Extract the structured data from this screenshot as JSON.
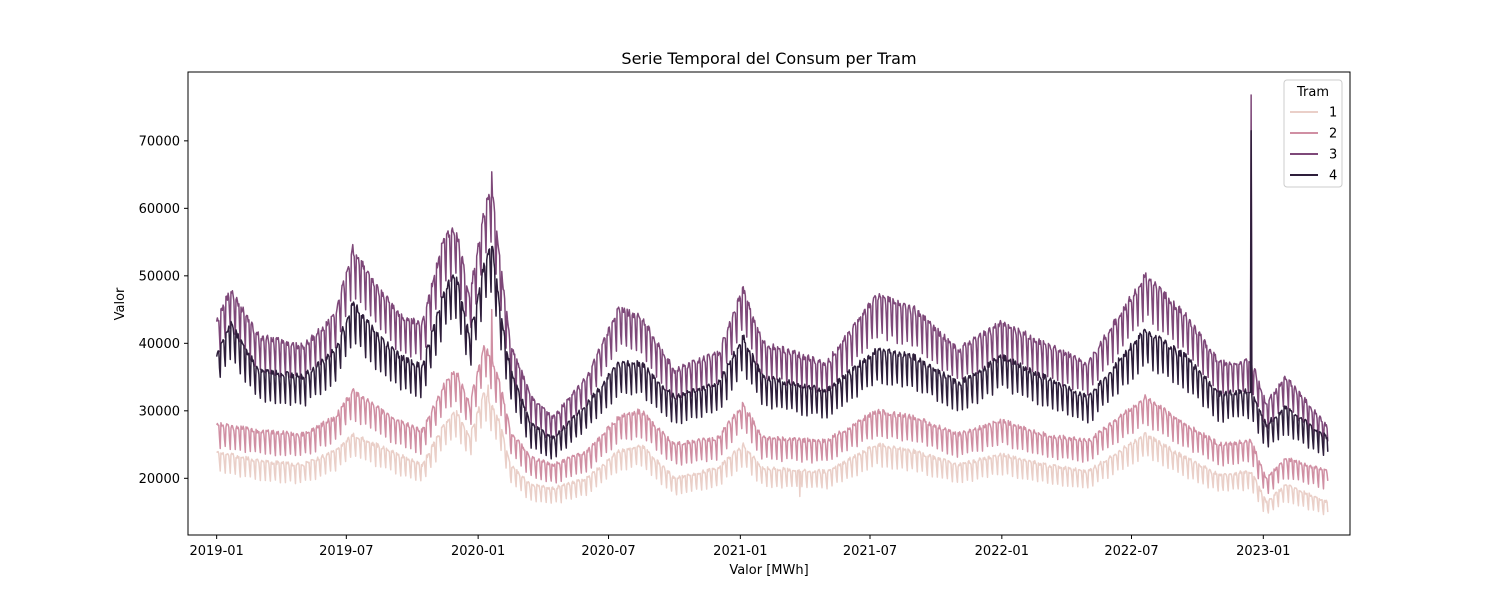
{
  "chart_data": {
    "type": "line",
    "title": "Serie Temporal del Consum per Tram",
    "xlabel": "Valor [MWh]",
    "ylabel": "Valor",
    "x_axis_type": "date",
    "x_range": [
      "2018-11-22",
      "2023-05-02"
    ],
    "ylim": [
      11600,
      80200
    ],
    "x_ticks": [
      "2019-01",
      "2019-07",
      "2020-01",
      "2020-07",
      "2021-01",
      "2021-07",
      "2022-01",
      "2022-07",
      "2023-01"
    ],
    "y_ticks": [
      20000,
      30000,
      40000,
      50000,
      60000,
      70000
    ],
    "grid": false,
    "legend": {
      "title": "Tram",
      "placement": "top-right"
    },
    "series": [
      {
        "name": "1",
        "color": "#eacfc8",
        "baseline_anchors": [
          [
            "2019-01-01",
            24000
          ],
          [
            "2019-03-01",
            22500
          ],
          [
            "2019-05-01",
            22000
          ],
          [
            "2019-06-15",
            24000
          ],
          [
            "2019-07-10",
            26500
          ],
          [
            "2019-09-01",
            24000
          ],
          [
            "2019-10-15",
            22000
          ],
          [
            "2019-11-15",
            28000
          ],
          [
            "2019-12-01",
            30000
          ],
          [
            "2019-12-20",
            26000
          ],
          [
            "2020-01-10",
            33000
          ],
          [
            "2020-02-01",
            28000
          ],
          [
            "2020-02-15",
            22000
          ],
          [
            "2020-03-15",
            19000
          ],
          [
            "2020-04-15",
            18500
          ],
          [
            "2020-06-01",
            20000
          ],
          [
            "2020-07-15",
            24000
          ],
          [
            "2020-08-15",
            25000
          ],
          [
            "2020-10-01",
            20000
          ],
          [
            "2020-12-01",
            21500
          ],
          [
            "2021-01-05",
            25000
          ],
          [
            "2021-02-01",
            21500
          ],
          [
            "2021-05-01",
            21000
          ],
          [
            "2021-07-10",
            25000
          ],
          [
            "2021-09-01",
            24000
          ],
          [
            "2021-11-01",
            22000
          ],
          [
            "2022-01-01",
            23500
          ],
          [
            "2022-03-01",
            22000
          ],
          [
            "2022-05-01",
            21000
          ],
          [
            "2022-07-20",
            26500
          ],
          [
            "2022-09-15",
            23000
          ],
          [
            "2022-11-01",
            20500
          ],
          [
            "2022-12-15",
            21000
          ],
          [
            "2023-01-05",
            16500
          ],
          [
            "2023-02-01",
            19000
          ],
          [
            "2023-04-01",
            16500
          ]
        ],
        "highlights": [
          [
            "2020-01-15",
            33800
          ],
          [
            "2021-03-25",
            17300
          ],
          [
            "2023-04-01",
            15000
          ]
        ]
      },
      {
        "name": "2",
        "color": "#d08fa3",
        "baseline_anchors": [
          [
            "2019-01-01",
            28000
          ],
          [
            "2019-03-01",
            27000
          ],
          [
            "2019-05-01",
            26500
          ],
          [
            "2019-06-15",
            29000
          ],
          [
            "2019-07-10",
            33000
          ],
          [
            "2019-09-01",
            29000
          ],
          [
            "2019-10-15",
            27000
          ],
          [
            "2019-11-15",
            34000
          ],
          [
            "2019-12-01",
            36000
          ],
          [
            "2019-12-20",
            31000
          ],
          [
            "2020-01-10",
            40000
          ],
          [
            "2020-02-01",
            34000
          ],
          [
            "2020-02-15",
            27000
          ],
          [
            "2020-03-15",
            23000
          ],
          [
            "2020-04-15",
            22000
          ],
          [
            "2020-06-01",
            24000
          ],
          [
            "2020-07-15",
            29000
          ],
          [
            "2020-08-15",
            30000
          ],
          [
            "2020-10-01",
            25000
          ],
          [
            "2020-12-01",
            26000
          ],
          [
            "2021-01-05",
            31000
          ],
          [
            "2021-02-01",
            26000
          ],
          [
            "2021-05-01",
            25500
          ],
          [
            "2021-07-10",
            30000
          ],
          [
            "2021-09-01",
            29000
          ],
          [
            "2021-11-01",
            26500
          ],
          [
            "2022-01-01",
            28500
          ],
          [
            "2022-03-01",
            26500
          ],
          [
            "2022-05-01",
            25500
          ],
          [
            "2022-07-20",
            32000
          ],
          [
            "2022-09-15",
            28000
          ],
          [
            "2022-11-01",
            25000
          ],
          [
            "2022-12-15",
            25500
          ],
          [
            "2023-01-05",
            20000
          ],
          [
            "2023-02-01",
            23000
          ],
          [
            "2023-04-01",
            21000
          ]
        ],
        "highlights": [
          [
            "2020-01-20",
            45000
          ]
        ]
      },
      {
        "name": "3",
        "color": "#7e4879",
        "baseline_anchors": [
          [
            "2019-01-01",
            43000
          ],
          [
            "2019-01-20",
            48000
          ],
          [
            "2019-03-01",
            41000
          ],
          [
            "2019-05-01",
            39500
          ],
          [
            "2019-06-15",
            44000
          ],
          [
            "2019-07-10",
            54000
          ],
          [
            "2019-08-15",
            48000
          ],
          [
            "2019-09-15",
            44000
          ],
          [
            "2019-10-15",
            43000
          ],
          [
            "2019-11-15",
            56000
          ],
          [
            "2019-12-01",
            57000
          ],
          [
            "2019-12-20",
            47000
          ],
          [
            "2020-01-10",
            60000
          ],
          [
            "2020-01-20",
            63000
          ],
          [
            "2020-02-01",
            52000
          ],
          [
            "2020-02-15",
            40000
          ],
          [
            "2020-03-15",
            32000
          ],
          [
            "2020-04-15",
            29000
          ],
          [
            "2020-06-01",
            35000
          ],
          [
            "2020-07-15",
            45000
          ],
          [
            "2020-08-15",
            44000
          ],
          [
            "2020-10-01",
            36000
          ],
          [
            "2020-12-01",
            38500
          ],
          [
            "2021-01-05",
            48000
          ],
          [
            "2021-02-01",
            40000
          ],
          [
            "2021-05-01",
            37000
          ],
          [
            "2021-07-10",
            47000
          ],
          [
            "2021-09-01",
            45000
          ],
          [
            "2021-11-01",
            39000
          ],
          [
            "2022-01-01",
            43000
          ],
          [
            "2022-03-01",
            40000
          ],
          [
            "2022-05-01",
            37000
          ],
          [
            "2022-07-20",
            50000
          ],
          [
            "2022-09-15",
            44000
          ],
          [
            "2022-11-01",
            37000
          ],
          [
            "2022-12-15",
            37500
          ],
          [
            "2023-01-05",
            31000
          ],
          [
            "2023-02-01",
            35000
          ],
          [
            "2023-04-01",
            27500
          ]
        ],
        "highlights": [
          [
            "2020-01-20",
            65400
          ],
          [
            "2022-12-15",
            76800
          ]
        ]
      },
      {
        "name": "4",
        "color": "#2e1e3b",
        "baseline_anchors": [
          [
            "2019-01-01",
            38000
          ],
          [
            "2019-01-20",
            43000
          ],
          [
            "2019-03-01",
            36000
          ],
          [
            "2019-05-01",
            35000
          ],
          [
            "2019-06-15",
            39000
          ],
          [
            "2019-07-10",
            46000
          ],
          [
            "2019-08-15",
            41000
          ],
          [
            "2019-09-15",
            38000
          ],
          [
            "2019-10-15",
            36500
          ],
          [
            "2019-11-15",
            48000
          ],
          [
            "2019-12-01",
            50000
          ],
          [
            "2019-12-20",
            41000
          ],
          [
            "2020-01-10",
            52000
          ],
          [
            "2020-01-20",
            55000
          ],
          [
            "2020-02-01",
            45000
          ],
          [
            "2020-02-15",
            36000
          ],
          [
            "2020-03-15",
            28000
          ],
          [
            "2020-04-15",
            26000
          ],
          [
            "2020-06-01",
            31000
          ],
          [
            "2020-07-15",
            37000
          ],
          [
            "2020-08-15",
            37000
          ],
          [
            "2020-10-01",
            32000
          ],
          [
            "2020-12-01",
            34000
          ],
          [
            "2021-01-05",
            41000
          ],
          [
            "2021-02-01",
            35000
          ],
          [
            "2021-05-01",
            33000
          ],
          [
            "2021-07-10",
            39000
          ],
          [
            "2021-09-01",
            38000
          ],
          [
            "2021-11-01",
            34000
          ],
          [
            "2022-01-01",
            38000
          ],
          [
            "2022-03-01",
            35000
          ],
          [
            "2022-05-01",
            32000
          ],
          [
            "2022-07-20",
            42000
          ],
          [
            "2022-09-15",
            38000
          ],
          [
            "2022-11-01",
            32500
          ],
          [
            "2022-12-15",
            33000
          ],
          [
            "2023-01-05",
            28000
          ],
          [
            "2023-02-01",
            30500
          ],
          [
            "2023-04-01",
            26000
          ]
        ],
        "highlights": [
          [
            "2022-12-15",
            71500
          ]
        ]
      }
    ]
  }
}
